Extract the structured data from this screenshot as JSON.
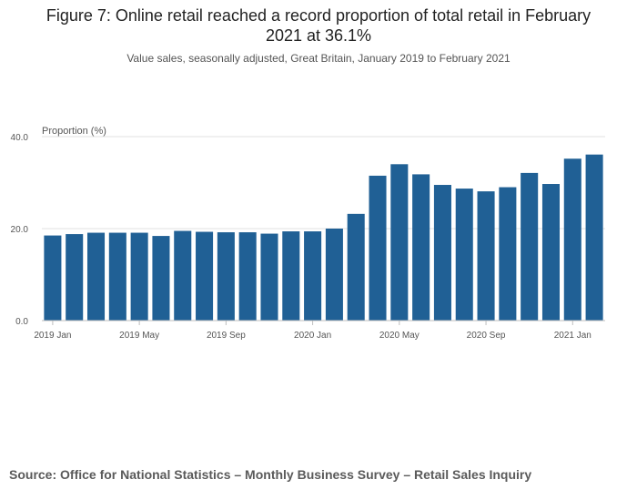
{
  "title": "Figure 7: Online retail reached a record proportion of total retail in February 2021 at 36.1%",
  "subtitle": "Value sales, seasonally adjusted, Great Britain, January 2019 to February 2021",
  "source": "Source: Office for National Statistics – Monthly Business Survey – Retail Sales Inquiry",
  "colors": {
    "bar": "#206095",
    "grid": "#e0e0e0",
    "axis": "#bebebe",
    "text": "#555555"
  },
  "chart_data": {
    "type": "bar",
    "title": "Figure 7: Online retail reached a record proportion of total retail in February 2021 at 36.1%",
    "subtitle": "Value sales, seasonally adjusted, Great Britain, January 2019 to February 2021",
    "ylabel": "Proportion (%)",
    "xlabel": "",
    "ylim": [
      0,
      40
    ],
    "yticks": [
      0,
      20,
      40
    ],
    "ytick_labels": [
      "0.0",
      "20.0",
      "40.0"
    ],
    "grid": true,
    "categories": [
      "2019 Jan",
      "2019 Feb",
      "2019 Mar",
      "2019 Apr",
      "2019 May",
      "2019 Jun",
      "2019 Jul",
      "2019 Aug",
      "2019 Sep",
      "2019 Oct",
      "2019 Nov",
      "2019 Dec",
      "2020 Jan",
      "2020 Feb",
      "2020 Mar",
      "2020 Apr",
      "2020 May",
      "2020 Jun",
      "2020 Jul",
      "2020 Aug",
      "2020 Sep",
      "2020 Oct",
      "2020 Nov",
      "2020 Dec",
      "2021 Jan",
      "2021 Feb"
    ],
    "x_tick_labels": [
      {
        "index": 0,
        "label": "2019 Jan"
      },
      {
        "index": 4,
        "label": "2019 May"
      },
      {
        "index": 8,
        "label": "2019 Sep"
      },
      {
        "index": 12,
        "label": "2020 Jan"
      },
      {
        "index": 16,
        "label": "2020 May"
      },
      {
        "index": 20,
        "label": "2020 Sep"
      },
      {
        "index": 24,
        "label": "2021 Jan"
      }
    ],
    "values": [
      18.5,
      18.8,
      19.1,
      19.1,
      19.1,
      18.4,
      19.5,
      19.3,
      19.2,
      19.2,
      18.9,
      19.4,
      19.4,
      20.0,
      23.2,
      31.5,
      34.0,
      31.8,
      29.5,
      28.7,
      28.1,
      29.0,
      32.1,
      29.7,
      35.2,
      36.1
    ]
  }
}
